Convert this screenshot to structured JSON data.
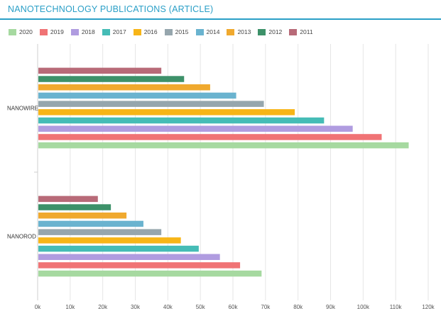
{
  "header": {
    "title": "NANOTECHNOLOGY PUBLICATIONS (ARTICLE)"
  },
  "chart_data": {
    "type": "bar",
    "orientation": "horizontal",
    "categories": [
      "NANOWIRE",
      "NANOROD"
    ],
    "series": [
      {
        "name": "2011",
        "color": "#b86a78",
        "values": [
          38000,
          18500
        ]
      },
      {
        "name": "2012",
        "color": "#3d9169",
        "values": [
          45000,
          22500
        ]
      },
      {
        "name": "2013",
        "color": "#f0a92e",
        "values": [
          53000,
          27300
        ]
      },
      {
        "name": "2014",
        "color": "#6ab3cf",
        "values": [
          61000,
          32500
        ]
      },
      {
        "name": "2015",
        "color": "#96a6ad",
        "values": [
          69500,
          38000
        ]
      },
      {
        "name": "2016",
        "color": "#f7b517",
        "values": [
          79000,
          44000
        ]
      },
      {
        "name": "2017",
        "color": "#45bcb6",
        "values": [
          88000,
          49500
        ]
      },
      {
        "name": "2018",
        "color": "#b09ce0",
        "values": [
          96800,
          56000
        ]
      },
      {
        "name": "2019",
        "color": "#f07375",
        "values": [
          105700,
          62200
        ]
      },
      {
        "name": "2020",
        "color": "#a6d9a0",
        "values": [
          114000,
          68800
        ]
      }
    ],
    "legend_order": [
      "2020",
      "2019",
      "2018",
      "2017",
      "2016",
      "2015",
      "2014",
      "2013",
      "2012",
      "2011"
    ],
    "xlim": [
      0,
      120000
    ],
    "xticks": [
      {
        "value": 0,
        "label": "0k"
      },
      {
        "value": 10000,
        "label": "10k"
      },
      {
        "value": 20000,
        "label": "20k"
      },
      {
        "value": 30000,
        "label": "30k"
      },
      {
        "value": 40000,
        "label": "40k"
      },
      {
        "value": 50000,
        "label": "50k"
      },
      {
        "value": 60000,
        "label": "60k"
      },
      {
        "value": 70000,
        "label": "70k"
      },
      {
        "value": 80000,
        "label": "80k"
      },
      {
        "value": 90000,
        "label": "90k"
      },
      {
        "value": 100000,
        "label": "100k"
      },
      {
        "value": 110000,
        "label": "110k"
      },
      {
        "value": 120000,
        "label": "120k"
      }
    ],
    "grid": true,
    "legend_position": "top-left"
  }
}
